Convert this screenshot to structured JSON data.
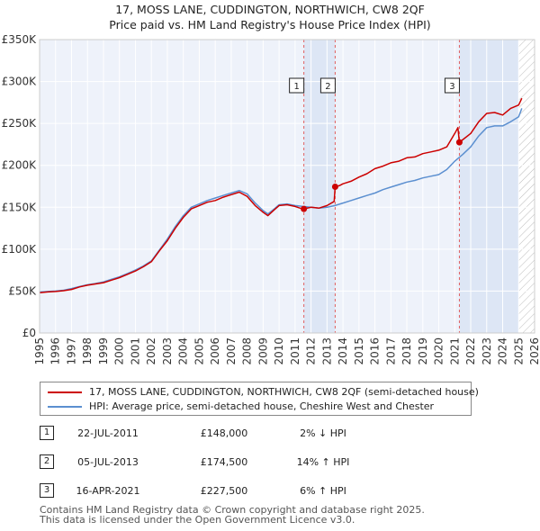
{
  "title": {
    "line1": "17, MOSS LANE, CUDDINGTON, NORTHWICH, CW8 2QF",
    "line2": "Price paid vs. HM Land Registry's House Price Index (HPI)"
  },
  "legend": {
    "items": [
      {
        "label": "17, MOSS LANE, CUDDINGTON, NORTHWICH, CW8 2QF (semi-detached house)",
        "color": "#cc0000"
      },
      {
        "label": "HPI: Average price, semi-detached house, Cheshire West and Chester",
        "color": "#5b8fd0"
      }
    ]
  },
  "sales": [
    {
      "num": "1",
      "date": "22-JUL-2011",
      "price": "£148,000",
      "hpi": "2% ↓ HPI"
    },
    {
      "num": "2",
      "date": "05-JUL-2013",
      "price": "£174,500",
      "hpi": "14% ↑ HPI"
    },
    {
      "num": "3",
      "date": "16-APR-2021",
      "price": "£227,500",
      "hpi": "6% ↑ HPI"
    }
  ],
  "footer": {
    "line1": "Contains HM Land Registry data © Crown copyright and database right 2025.",
    "line2": "This data is licensed under the Open Government Licence v3.0."
  },
  "colors": {
    "property_line": "#cc0000",
    "hpi_line": "#5b8fd0",
    "plot_bg": "#eef2fa",
    "shade_bg": "#dde6f5",
    "grid": "#ffffff",
    "sale_vline": "#e06060"
  },
  "chart_data": {
    "type": "line",
    "title": "17, MOSS LANE, CUDDINGTON, NORTHWICH, CW8 2QF — Price paid vs. HM Land Registry's House Price Index (HPI)",
    "xlabel": "",
    "ylabel": "",
    "xlim": [
      1995,
      2026
    ],
    "ylim": [
      0,
      350000
    ],
    "grid": true,
    "legend_position": "below-chart",
    "x_ticks": [
      "1995",
      "1996",
      "1997",
      "1998",
      "1999",
      "2000",
      "2001",
      "2002",
      "2003",
      "2004",
      "2005",
      "2006",
      "2007",
      "2008",
      "2009",
      "2010",
      "2011",
      "2012",
      "2013",
      "2014",
      "2015",
      "2016",
      "2017",
      "2018",
      "2019",
      "2020",
      "2021",
      "2022",
      "2023",
      "2024",
      "2025",
      "2026"
    ],
    "y_ticks": [
      {
        "value": 0,
        "label": "£0"
      },
      {
        "value": 50000,
        "label": "£50K"
      },
      {
        "value": 100000,
        "label": "£100K"
      },
      {
        "value": 150000,
        "label": "£150K"
      },
      {
        "value": 200000,
        "label": "£200K"
      },
      {
        "value": 250000,
        "label": "£250K"
      },
      {
        "value": 300000,
        "label": "£300K"
      },
      {
        "value": 350000,
        "label": "£350K"
      }
    ],
    "shaded_regions": [
      {
        "from": 2011.55,
        "to": 2013.51
      },
      {
        "from": 2021.29,
        "to": 2025.0
      }
    ],
    "hatched_region": {
      "from": 2025.0,
      "to": 2026
    },
    "series": [
      {
        "name": "17, MOSS LANE, CUDDINGTON, NORTHWICH, CW8 2QF (semi-detached house)",
        "color": "#cc0000",
        "x": [
          1995.0,
          1995.5,
          1996.0,
          1996.5,
          1997.0,
          1997.5,
          1998.0,
          1998.5,
          1999.0,
          1999.5,
          2000.0,
          2000.5,
          2001.0,
          2001.5,
          2002.0,
          2002.5,
          2003.0,
          2003.5,
          2004.0,
          2004.5,
          2005.0,
          2005.5,
          2006.0,
          2006.5,
          2007.0,
          2007.5,
          2008.0,
          2008.5,
          2009.0,
          2009.3,
          2009.7,
          2010.0,
          2010.5,
          2011.0,
          2011.3,
          2011.55,
          2012.0,
          2012.5,
          2013.0,
          2013.45,
          2013.51,
          2013.8,
          2014.0,
          2014.5,
          2015.0,
          2015.5,
          2016.0,
          2016.5,
          2017.0,
          2017.5,
          2018.0,
          2018.5,
          2019.0,
          2019.5,
          2020.0,
          2020.5,
          2021.0,
          2021.2,
          2021.29,
          2021.6,
          2022.0,
          2022.5,
          2023.0,
          2023.5,
          2024.0,
          2024.5,
          2025.0,
          2025.2
        ],
        "y": [
          48000,
          49000,
          49500,
          50500,
          52000,
          55000,
          57000,
          58500,
          60000,
          63000,
          66000,
          70000,
          74000,
          79000,
          85000,
          98000,
          110000,
          125000,
          138000,
          148000,
          152000,
          156000,
          158000,
          162000,
          165000,
          168000,
          163000,
          152000,
          144000,
          140000,
          147000,
          152000,
          153000,
          151000,
          149000,
          148000,
          150000,
          149000,
          152000,
          157000,
          174500,
          176000,
          178000,
          181000,
          186000,
          190000,
          196000,
          199000,
          203000,
          205000,
          209000,
          210000,
          214000,
          216000,
          218000,
          222000,
          238000,
          245000,
          227500,
          232000,
          238000,
          252000,
          262000,
          263000,
          260000,
          268000,
          272000,
          280000
        ]
      },
      {
        "name": "HPI: Average price, semi-detached house, Cheshire West and Chester",
        "color": "#5b8fd0",
        "x": [
          1995.0,
          1995.5,
          1996.0,
          1996.5,
          1997.0,
          1997.5,
          1998.0,
          1998.5,
          1999.0,
          1999.5,
          2000.0,
          2000.5,
          2001.0,
          2001.5,
          2002.0,
          2002.5,
          2003.0,
          2003.5,
          2004.0,
          2004.5,
          2005.0,
          2005.5,
          2006.0,
          2006.5,
          2007.0,
          2007.5,
          2008.0,
          2008.5,
          2009.0,
          2009.3,
          2009.7,
          2010.0,
          2010.5,
          2011.0,
          2011.5,
          2012.0,
          2012.5,
          2013.0,
          2013.5,
          2014.0,
          2014.5,
          2015.0,
          2015.5,
          2016.0,
          2016.5,
          2017.0,
          2017.5,
          2018.0,
          2018.5,
          2019.0,
          2019.5,
          2020.0,
          2020.5,
          2021.0,
          2021.5,
          2022.0,
          2022.5,
          2023.0,
          2023.5,
          2024.0,
          2024.5,
          2025.0,
          2025.2
        ],
        "y": [
          49000,
          49500,
          50000,
          51000,
          53000,
          55500,
          57500,
          59000,
          61000,
          64000,
          67000,
          71000,
          75000,
          80000,
          86000,
          99000,
          112000,
          127000,
          140000,
          150000,
          154000,
          158000,
          161000,
          164000,
          167000,
          170000,
          166000,
          155000,
          146000,
          142000,
          148000,
          153000,
          154000,
          152000,
          151000,
          150000,
          149000,
          150000,
          152000,
          155000,
          158000,
          161000,
          164000,
          167000,
          171000,
          174000,
          177000,
          180000,
          182000,
          185000,
          187000,
          189000,
          195000,
          205000,
          213000,
          222000,
          235000,
          245000,
          247000,
          247000,
          252000,
          258000,
          268000
        ]
      }
    ],
    "sale_markers": [
      {
        "num": "1",
        "x": 2011.55,
        "y": 148000
      },
      {
        "num": "2",
        "x": 2013.51,
        "y": 174500
      },
      {
        "num": "3",
        "x": 2021.29,
        "y": 227500
      }
    ]
  }
}
